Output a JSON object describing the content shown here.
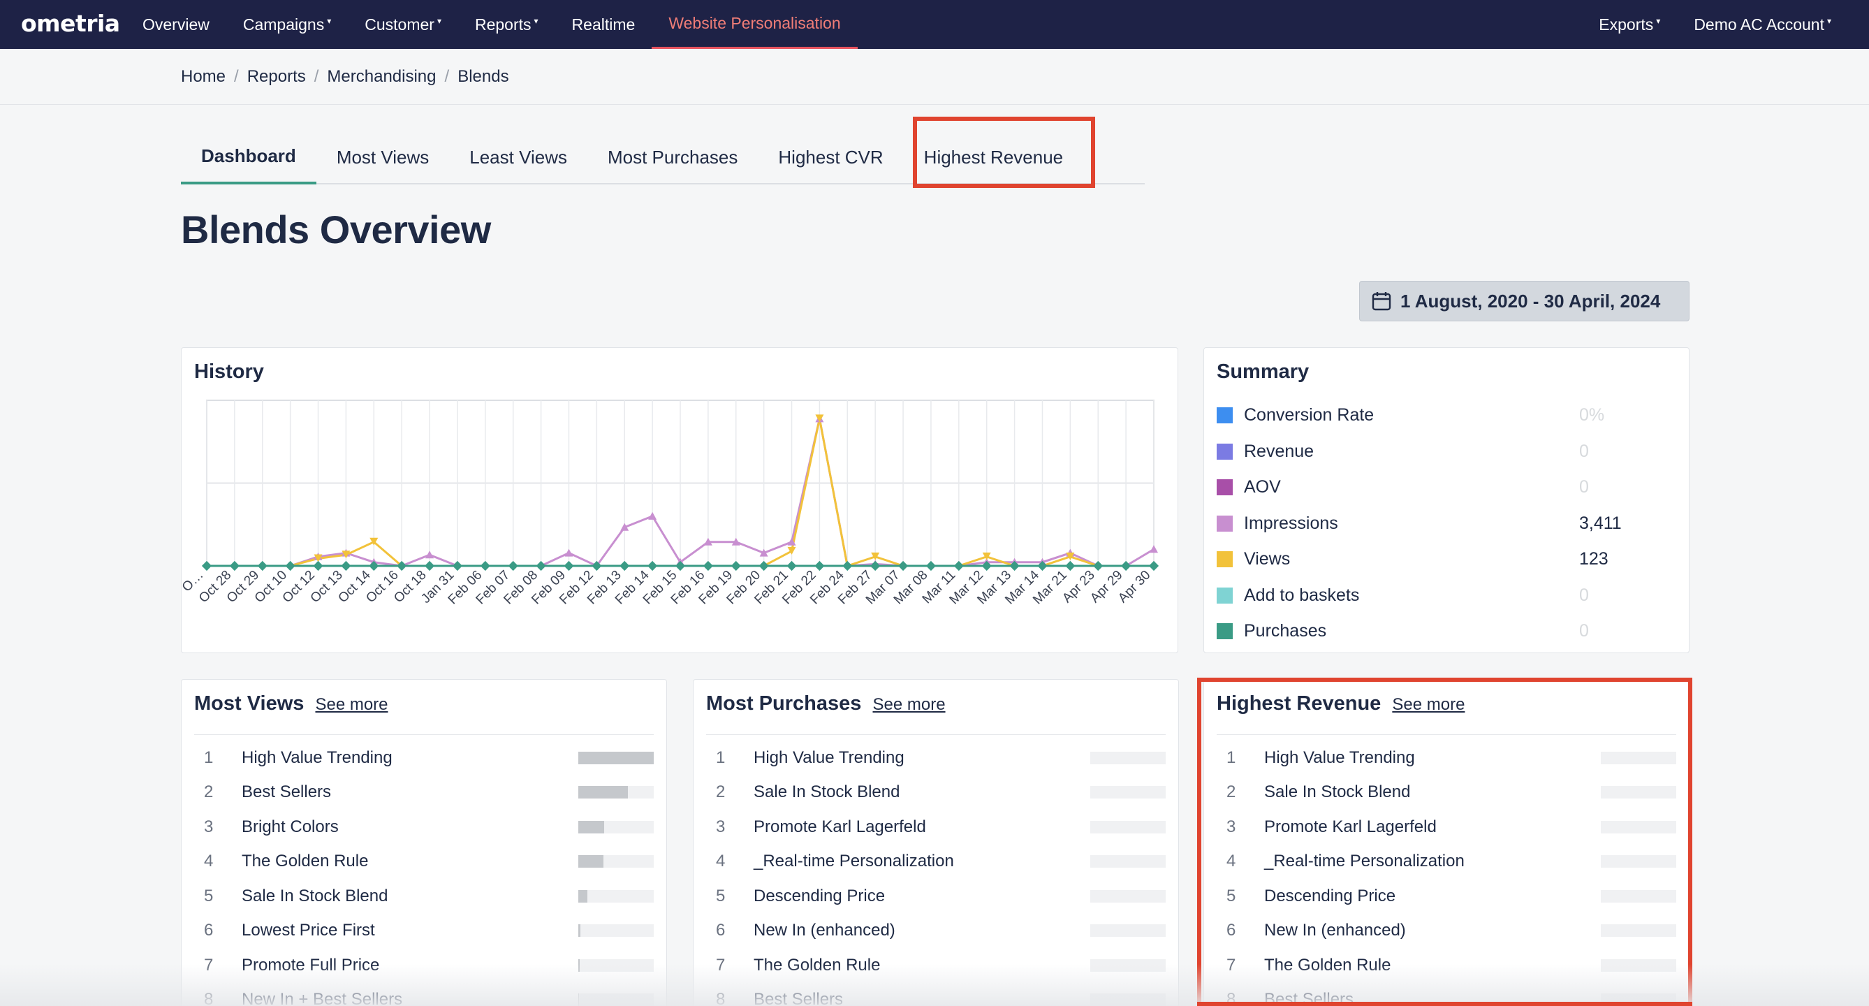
{
  "nav": {
    "logo": "ometria",
    "items": [
      {
        "label": "Overview",
        "caret": false
      },
      {
        "label": "Campaigns",
        "caret": true
      },
      {
        "label": "Customer",
        "caret": true
      },
      {
        "label": "Reports",
        "caret": true
      },
      {
        "label": "Realtime",
        "caret": false
      },
      {
        "label": "Website Personalisation",
        "caret": false,
        "active": true
      }
    ],
    "right": [
      {
        "label": "Exports",
        "caret": true
      },
      {
        "label": "Demo AC Account",
        "caret": true
      }
    ],
    "caret_glyph": "▾"
  },
  "breadcrumb": [
    "Home",
    "Reports",
    "Merchandising",
    "Blends"
  ],
  "tabs": [
    "Dashboard",
    "Most Views",
    "Least Views",
    "Most Purchases",
    "Highest CVR",
    "Highest Revenue"
  ],
  "page_title": "Blends Overview",
  "date_range": "1 August, 2020 - 30 April, 2024",
  "history": {
    "title": "History"
  },
  "chart_data": {
    "type": "line",
    "title": "History",
    "categories": [
      "O…",
      "Oct 28",
      "Oct 29",
      "Oct 10",
      "Oct 12",
      "Oct 13",
      "Oct 14",
      "Oct 16",
      "Oct 18",
      "Jan 31",
      "Feb 06",
      "Feb 07",
      "Feb 08",
      "Feb 09",
      "Feb 12",
      "Feb 13",
      "Feb 14",
      "Feb 15",
      "Feb 16",
      "Feb 19",
      "Feb 20",
      "Feb 21",
      "Feb 22",
      "Feb 24",
      "Feb 27",
      "Mar 07",
      "Mar 08",
      "Mar 11",
      "Mar 12",
      "Mar 13",
      "Mar 14",
      "Mar 21",
      "Apr 23",
      "Apr 29",
      "Apr 30"
    ],
    "series": [
      {
        "name": "Impressions",
        "color": "#c88fd0",
        "values": [
          0,
          0,
          0,
          0,
          10,
          14,
          4,
          0,
          12,
          0,
          0,
          0,
          0,
          14,
          0,
          42,
          54,
          4,
          26,
          26,
          14,
          26,
          160,
          0,
          2,
          0,
          0,
          0,
          4,
          4,
          4,
          14,
          0,
          0,
          18
        ]
      },
      {
        "name": "Views",
        "color": "#f2c23a",
        "values": [
          0,
          0,
          0,
          0,
          8,
          12,
          26,
          0,
          0,
          0,
          0,
          0,
          0,
          0,
          0,
          0,
          0,
          0,
          0,
          0,
          0,
          16,
          160,
          0,
          10,
          0,
          0,
          0,
          10,
          0,
          0,
          10,
          0,
          0,
          0
        ]
      },
      {
        "name": "Purchases",
        "color": "#3a9b85",
        "values": [
          0,
          0,
          0,
          0,
          0,
          0,
          0,
          0,
          0,
          0,
          0,
          0,
          0,
          0,
          0,
          0,
          0,
          0,
          0,
          0,
          0,
          0,
          0,
          0,
          0,
          0,
          0,
          0,
          0,
          0,
          0,
          0,
          0,
          0,
          0
        ]
      }
    ],
    "ylim": [
      0,
      180
    ],
    "grid": true
  },
  "summary": {
    "title": "Summary",
    "rows": [
      {
        "label": "Conversion Rate",
        "value": "0%",
        "color": "#3d8ef0",
        "muted": true
      },
      {
        "label": "Revenue",
        "value": "0",
        "color": "#7b7be3",
        "muted": true
      },
      {
        "label": "AOV",
        "value": "0",
        "color": "#a84fa8",
        "muted": true
      },
      {
        "label": "Impressions",
        "value": "3,411",
        "color": "#c88fd0",
        "muted": false
      },
      {
        "label": "Views",
        "value": "123",
        "color": "#f2c23a",
        "muted": false
      },
      {
        "label": "Add to baskets",
        "value": "0",
        "color": "#7fd3d3",
        "muted": true
      },
      {
        "label": "Purchases",
        "value": "0",
        "color": "#3a9b85",
        "muted": true
      }
    ]
  },
  "most_views": {
    "title": "Most Views",
    "see_more": "See more",
    "items": [
      {
        "rank": "1",
        "name": "High Value Trending",
        "level": 1.0
      },
      {
        "rank": "2",
        "name": "Best Sellers",
        "level": 0.66
      },
      {
        "rank": "3",
        "name": "Bright Colors",
        "level": 0.34
      },
      {
        "rank": "4",
        "name": "The Golden Rule",
        "level": 0.33
      },
      {
        "rank": "5",
        "name": "Sale In Stock Blend",
        "level": 0.12
      },
      {
        "rank": "6",
        "name": "Lowest Price First",
        "level": 0.03
      },
      {
        "rank": "7",
        "name": "Promote Full Price",
        "level": 0.02
      },
      {
        "rank": "8",
        "name": "New In + Best Sellers",
        "level": 0.01
      }
    ]
  },
  "most_purchases": {
    "title": "Most Purchases",
    "see_more": "See more",
    "items": [
      {
        "rank": "1",
        "name": "High Value Trending",
        "level": 0
      },
      {
        "rank": "2",
        "name": "Sale In Stock Blend",
        "level": 0
      },
      {
        "rank": "3",
        "name": "Promote Karl Lagerfeld",
        "level": 0
      },
      {
        "rank": "4",
        "name": "_Real-time Personalization",
        "level": 0
      },
      {
        "rank": "5",
        "name": "Descending Price",
        "level": 0
      },
      {
        "rank": "6",
        "name": "New In (enhanced)",
        "level": 0
      },
      {
        "rank": "7",
        "name": "The Golden Rule",
        "level": 0
      },
      {
        "rank": "8",
        "name": "Best Sellers",
        "level": 0
      }
    ]
  },
  "highest_revenue": {
    "title": "Highest Revenue",
    "see_more": "See more",
    "items": [
      {
        "rank": "1",
        "name": "High Value Trending",
        "level": 0
      },
      {
        "rank": "2",
        "name": "Sale In Stock Blend",
        "level": 0
      },
      {
        "rank": "3",
        "name": "Promote Karl Lagerfeld",
        "level": 0
      },
      {
        "rank": "4",
        "name": "_Real-time Personalization",
        "level": 0
      },
      {
        "rank": "5",
        "name": "Descending Price",
        "level": 0
      },
      {
        "rank": "6",
        "name": "New In (enhanced)",
        "level": 0
      },
      {
        "rank": "7",
        "name": "The Golden Rule",
        "level": 0
      },
      {
        "rank": "8",
        "name": "Best Sellers",
        "level": 0
      }
    ]
  },
  "icons": {
    "calendar": "calendar-icon"
  },
  "colors": {
    "nav_bg": "#1e2246",
    "accent": "#e8545f",
    "highlight": "#e0442f",
    "tab_active": "#3a9b85"
  }
}
